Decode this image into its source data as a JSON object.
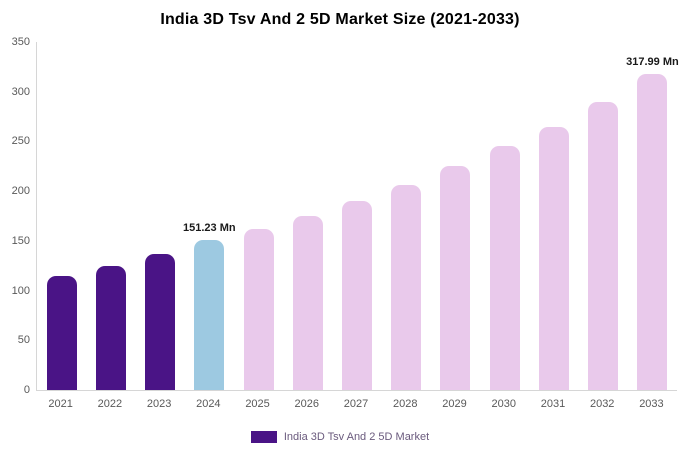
{
  "chart_data": {
    "type": "bar",
    "title": "India 3D Tsv And 2 5D Market Size (2021-2033)",
    "legend": "India 3D Tsv And 2 5D Market",
    "categories": [
      "2021",
      "2022",
      "2023",
      "2024",
      "2025",
      "2026",
      "2027",
      "2028",
      "2029",
      "2030",
      "2031",
      "2032",
      "2033"
    ],
    "values": [
      115,
      125,
      137,
      151.23,
      162,
      175,
      190,
      206,
      225,
      245,
      265,
      290,
      317.99
    ],
    "unit": "Mn",
    "ylim": [
      0,
      350
    ],
    "yticks": [
      0,
      50,
      100,
      150,
      200,
      250,
      300,
      350
    ],
    "grid": false,
    "legend_position": "bottom",
    "bar_colors": {
      "past": "#4a1486",
      "current": "#9dc9e1",
      "forecast": "#e9c9eb"
    },
    "color_assignment": [
      "past",
      "past",
      "past",
      "current",
      "forecast",
      "forecast",
      "forecast",
      "forecast",
      "forecast",
      "forecast",
      "forecast",
      "forecast",
      "forecast"
    ],
    "data_labels": [
      {
        "index": 3,
        "text": "151.23 Mn"
      },
      {
        "index": 12,
        "text": "317.99 Mn"
      }
    ]
  },
  "colors": {
    "axis_line": "#d6d6d6",
    "tick_text": "#595959",
    "title_text": "#000000",
    "value_label_text": "#1a1a1a",
    "legend_text": "#6a5a7d",
    "legend_swatch": "#4a1486",
    "background": "#ffffff"
  }
}
